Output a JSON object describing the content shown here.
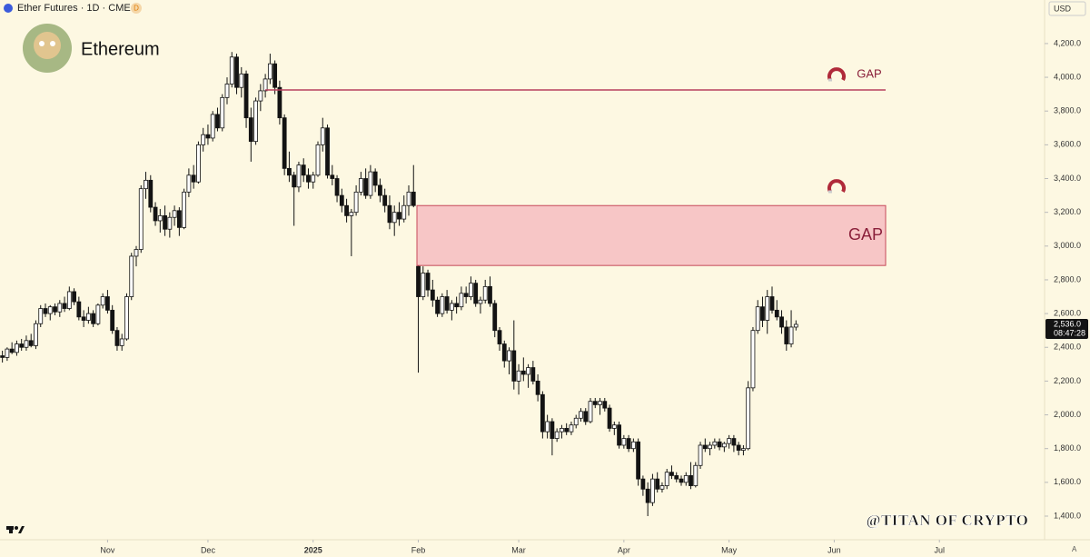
{
  "chart_data": {
    "type": "candlestick",
    "header": "Ether Futures · 1D · CME",
    "badge": "D",
    "symbol_name": "Ethereum",
    "currency": "USD",
    "scale_mode": "A",
    "watermark": "@TITAN OF CRYPTO",
    "up_color": "#ffffff",
    "down_color": "#131313",
    "wick_color": "#131313",
    "ylim": [
      1260,
      4458
    ],
    "yticks": [
      {
        "value": 1400,
        "label": "1,400.0"
      },
      {
        "value": 1600,
        "label": "1,600.0"
      },
      {
        "value": 1800,
        "label": "1,800.0"
      },
      {
        "value": 2000,
        "label": "2,000.0"
      },
      {
        "value": 2200,
        "label": "2,200.0"
      },
      {
        "value": 2400,
        "label": "2,400.0"
      },
      {
        "value": 2600,
        "label": "2,600.0"
      },
      {
        "value": 2800,
        "label": "2,800.0"
      },
      {
        "value": 3000,
        "label": "3,000.0"
      },
      {
        "value": 3200,
        "label": "3,200.0"
      },
      {
        "value": 3400,
        "label": "3,400.0"
      },
      {
        "value": 3600,
        "label": "3,600.0"
      },
      {
        "value": 3800,
        "label": "3,800.0"
      },
      {
        "value": 4000,
        "label": "4,000.0"
      },
      {
        "value": 4200,
        "label": "4,200.0"
      }
    ],
    "xlim": [
      -0.5,
      218
    ],
    "xticks": [
      {
        "value": 22,
        "label": "Nov"
      },
      {
        "value": 43,
        "label": "Dec"
      },
      {
        "value": 65,
        "label": "2025"
      },
      {
        "value": 87,
        "label": "Feb"
      },
      {
        "value": 108,
        "label": "Mar"
      },
      {
        "value": 130,
        "label": "Apr"
      },
      {
        "value": 152,
        "label": "May"
      },
      {
        "value": 174,
        "label": "Jun"
      },
      {
        "value": 196,
        "label": "Jul"
      }
    ],
    "last_price": {
      "value": 2536,
      "label": "2,536.0"
    },
    "countdown": "08:47:28",
    "gaps": [
      {
        "label": "GAP",
        "value": 3925,
        "color": "#b8405e"
      },
      {
        "label": "GAP",
        "from": 2885,
        "to": 3240,
        "color": "#f7c6c6"
      }
    ],
    "candles": [
      [
        2350,
        2380,
        2310,
        2340
      ],
      [
        2340,
        2400,
        2320,
        2390
      ],
      [
        2390,
        2430,
        2360,
        2370
      ],
      [
        2370,
        2440,
        2350,
        2420
      ],
      [
        2420,
        2450,
        2380,
        2400
      ],
      [
        2400,
        2470,
        2380,
        2440
      ],
      [
        2440,
        2480,
        2400,
        2410
      ],
      [
        2410,
        2560,
        2390,
        2540
      ],
      [
        2540,
        2650,
        2520,
        2630
      ],
      [
        2630,
        2660,
        2580,
        2600
      ],
      [
        2600,
        2650,
        2560,
        2640
      ],
      [
        2640,
        2660,
        2590,
        2610
      ],
      [
        2610,
        2680,
        2580,
        2660
      ],
      [
        2660,
        2700,
        2610,
        2630
      ],
      [
        2630,
        2760,
        2620,
        2730
      ],
      [
        2730,
        2750,
        2650,
        2670
      ],
      [
        2670,
        2700,
        2560,
        2580
      ],
      [
        2580,
        2620,
        2520,
        2560
      ],
      [
        2560,
        2640,
        2540,
        2600
      ],
      [
        2600,
        2620,
        2520,
        2540
      ],
      [
        2540,
        2660,
        2530,
        2650
      ],
      [
        2650,
        2720,
        2630,
        2700
      ],
      [
        2700,
        2740,
        2600,
        2620
      ],
      [
        2620,
        2650,
        2480,
        2500
      ],
      [
        2500,
        2520,
        2380,
        2410
      ],
      [
        2410,
        2480,
        2380,
        2450
      ],
      [
        2450,
        2720,
        2440,
        2700
      ],
      [
        2700,
        2960,
        2680,
        2940
      ],
      [
        2940,
        3000,
        2880,
        2980
      ],
      [
        2980,
        3360,
        2960,
        3340
      ],
      [
        3340,
        3440,
        3280,
        3390
      ],
      [
        3390,
        3420,
        3200,
        3230
      ],
      [
        3230,
        3260,
        3120,
        3150
      ],
      [
        3150,
        3220,
        3080,
        3180
      ],
      [
        3180,
        3240,
        3060,
        3100
      ],
      [
        3100,
        3200,
        3050,
        3170
      ],
      [
        3170,
        3240,
        3120,
        3210
      ],
      [
        3210,
        3230,
        3060,
        3110
      ],
      [
        3110,
        3340,
        3100,
        3320
      ],
      [
        3320,
        3460,
        3290,
        3420
      ],
      [
        3420,
        3480,
        3340,
        3380
      ],
      [
        3380,
        3620,
        3370,
        3600
      ],
      [
        3600,
        3700,
        3560,
        3660
      ],
      [
        3660,
        3720,
        3600,
        3640
      ],
      [
        3640,
        3800,
        3620,
        3780
      ],
      [
        3780,
        3820,
        3680,
        3700
      ],
      [
        3700,
        3900,
        3680,
        3880
      ],
      [
        3880,
        4000,
        3840,
        3960
      ],
      [
        3960,
        4150,
        3940,
        4120
      ],
      [
        4120,
        4140,
        3900,
        3940
      ],
      [
        3940,
        4060,
        3880,
        4020
      ],
      [
        4020,
        4040,
        3700,
        3760
      ],
      [
        3760,
        3820,
        3500,
        3620
      ],
      [
        3620,
        3880,
        3600,
        3860
      ],
      [
        3860,
        3960,
        3800,
        3920
      ],
      [
        3920,
        4020,
        3880,
        3990
      ],
      [
        3990,
        4140,
        3960,
        4080
      ],
      [
        4080,
        4100,
        3900,
        3940
      ],
      [
        3940,
        3980,
        3720,
        3760
      ],
      [
        3760,
        3780,
        3420,
        3460
      ],
      [
        3460,
        3560,
        3380,
        3420
      ],
      [
        3420,
        3440,
        3120,
        3350
      ],
      [
        3350,
        3500,
        3320,
        3480
      ],
      [
        3480,
        3520,
        3380,
        3420
      ],
      [
        3420,
        3460,
        3340,
        3380
      ],
      [
        3380,
        3440,
        3340,
        3420
      ],
      [
        3420,
        3620,
        3410,
        3600
      ],
      [
        3600,
        3760,
        3560,
        3700
      ],
      [
        3700,
        3720,
        3400,
        3420
      ],
      [
        3420,
        3480,
        3360,
        3400
      ],
      [
        3400,
        3420,
        3260,
        3300
      ],
      [
        3300,
        3340,
        3200,
        3240
      ],
      [
        3240,
        3280,
        3140,
        3180
      ],
      [
        3180,
        3220,
        2940,
        3200
      ],
      [
        3200,
        3360,
        3180,
        3320
      ],
      [
        3320,
        3440,
        3300,
        3400
      ],
      [
        3400,
        3460,
        3280,
        3300
      ],
      [
        3300,
        3480,
        3280,
        3440
      ],
      [
        3440,
        3460,
        3320,
        3360
      ],
      [
        3360,
        3400,
        3260,
        3300
      ],
      [
        3300,
        3340,
        3200,
        3240
      ],
      [
        3240,
        3300,
        3100,
        3140
      ],
      [
        3140,
        3240,
        3060,
        3200
      ],
      [
        3200,
        3260,
        3120,
        3160
      ],
      [
        3160,
        3300,
        3140,
        3240
      ],
      [
        3240,
        3360,
        3180,
        3320
      ],
      [
        3320,
        3480,
        3230,
        3240
      ],
      [
        2880,
        2900,
        2250,
        2700
      ],
      [
        2700,
        2880,
        2680,
        2840
      ],
      [
        2840,
        2860,
        2700,
        2740
      ],
      [
        2740,
        2800,
        2640,
        2680
      ],
      [
        2680,
        2700,
        2580,
        2600
      ],
      [
        2600,
        2720,
        2580,
        2700
      ],
      [
        2700,
        2740,
        2600,
        2620
      ],
      [
        2620,
        2680,
        2560,
        2660
      ],
      [
        2660,
        2700,
        2600,
        2640
      ],
      [
        2640,
        2760,
        2620,
        2720
      ],
      [
        2720,
        2760,
        2660,
        2700
      ],
      [
        2700,
        2820,
        2680,
        2780
      ],
      [
        2780,
        2800,
        2640,
        2660
      ],
      [
        2660,
        2700,
        2600,
        2680
      ],
      [
        2680,
        2800,
        2660,
        2760
      ],
      [
        2760,
        2820,
        2640,
        2660
      ],
      [
        2660,
        2680,
        2460,
        2500
      ],
      [
        2500,
        2520,
        2380,
        2420
      ],
      [
        2420,
        2440,
        2280,
        2320
      ],
      [
        2320,
        2400,
        2240,
        2380
      ],
      [
        2380,
        2560,
        2150,
        2200
      ],
      [
        2200,
        2300,
        2120,
        2260
      ],
      [
        2260,
        2340,
        2200,
        2240
      ],
      [
        2240,
        2300,
        2160,
        2280
      ],
      [
        2280,
        2320,
        2180,
        2200
      ],
      [
        2200,
        2240,
        2080,
        2120
      ],
      [
        2120,
        2140,
        1860,
        1900
      ],
      [
        1900,
        2000,
        1860,
        1960
      ],
      [
        1960,
        1980,
        1760,
        1860
      ],
      [
        1860,
        1920,
        1840,
        1900
      ],
      [
        1900,
        1940,
        1860,
        1920
      ],
      [
        1920,
        1950,
        1880,
        1900
      ],
      [
        1900,
        1960,
        1880,
        1940
      ],
      [
        1940,
        2000,
        1920,
        1980
      ],
      [
        1980,
        2040,
        1960,
        2020
      ],
      [
        2020,
        2040,
        1940,
        1960
      ],
      [
        1960,
        2100,
        1950,
        2080
      ],
      [
        2080,
        2100,
        2040,
        2060
      ],
      [
        2060,
        2100,
        2000,
        2080
      ],
      [
        2080,
        2100,
        2020,
        2040
      ],
      [
        2040,
        2060,
        1900,
        1920
      ],
      [
        1920,
        1960,
        1880,
        1940
      ],
      [
        1940,
        1960,
        1800,
        1820
      ],
      [
        1820,
        1880,
        1800,
        1860
      ],
      [
        1860,
        1880,
        1780,
        1800
      ],
      [
        1800,
        1860,
        1780,
        1840
      ],
      [
        1840,
        1860,
        1580,
        1620
      ],
      [
        1620,
        1640,
        1520,
        1560
      ],
      [
        1560,
        1600,
        1400,
        1480
      ],
      [
        1480,
        1650,
        1460,
        1620
      ],
      [
        1620,
        1660,
        1540,
        1560
      ],
      [
        1560,
        1600,
        1540,
        1580
      ],
      [
        1580,
        1680,
        1560,
        1660
      ],
      [
        1660,
        1700,
        1620,
        1640
      ],
      [
        1640,
        1660,
        1600,
        1620
      ],
      [
        1620,
        1640,
        1580,
        1600
      ],
      [
        1600,
        1660,
        1580,
        1640
      ],
      [
        1640,
        1720,
        1560,
        1580
      ],
      [
        1580,
        1720,
        1570,
        1700
      ],
      [
        1700,
        1840,
        1680,
        1820
      ],
      [
        1820,
        1860,
        1780,
        1800
      ],
      [
        1800,
        1840,
        1760,
        1820
      ],
      [
        1820,
        1860,
        1800,
        1840
      ],
      [
        1840,
        1860,
        1790,
        1810
      ],
      [
        1810,
        1840,
        1780,
        1830
      ],
      [
        1830,
        1880,
        1800,
        1860
      ],
      [
        1860,
        1880,
        1780,
        1820
      ],
      [
        1820,
        1840,
        1760,
        1790
      ],
      [
        1790,
        1820,
        1760,
        1800
      ],
      [
        1800,
        2200,
        1790,
        2160
      ],
      [
        2160,
        2520,
        2140,
        2500
      ],
      [
        2500,
        2680,
        2480,
        2640
      ],
      [
        2640,
        2700,
        2520,
        2560
      ],
      [
        2560,
        2740,
        2480,
        2700
      ],
      [
        2700,
        2760,
        2600,
        2620
      ],
      [
        2620,
        2680,
        2560,
        2580
      ],
      [
        2580,
        2620,
        2480,
        2520
      ],
      [
        2520,
        2560,
        2380,
        2420
      ],
      [
        2420,
        2620,
        2400,
        2520
      ],
      [
        2520,
        2560,
        2500,
        2536
      ]
    ]
  }
}
